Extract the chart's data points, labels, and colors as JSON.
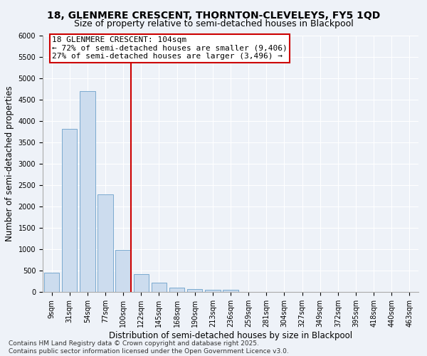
{
  "title1": "18, GLENMERE CRESCENT, THORNTON-CLEVELEYS, FY5 1QD",
  "title2": "Size of property relative to semi-detached houses in Blackpool",
  "xlabel": "Distribution of semi-detached houses by size in Blackpool",
  "ylabel": "Number of semi-detached properties",
  "categories": [
    "9sqm",
    "31sqm",
    "54sqm",
    "77sqm",
    "100sqm",
    "122sqm",
    "145sqm",
    "168sqm",
    "190sqm",
    "213sqm",
    "236sqm",
    "259sqm",
    "281sqm",
    "304sqm",
    "327sqm",
    "349sqm",
    "372sqm",
    "395sqm",
    "418sqm",
    "440sqm",
    "463sqm"
  ],
  "values": [
    450,
    3820,
    4700,
    2280,
    980,
    420,
    220,
    100,
    70,
    50,
    50,
    0,
    0,
    0,
    0,
    0,
    0,
    0,
    0,
    0,
    0
  ],
  "bar_color": "#ccdcee",
  "bar_edge_color": "#7aaacf",
  "vline_index": 4,
  "annotation_title": "18 GLENMERE CRESCENT: 104sqm",
  "annotation_line1": "← 72% of semi-detached houses are smaller (9,406)",
  "annotation_line2": "27% of semi-detached houses are larger (3,496) →",
  "annotation_box_color": "#ffffff",
  "annotation_box_edge": "#cc0000",
  "vline_color": "#cc0000",
  "ylim": [
    0,
    6000
  ],
  "yticks": [
    0,
    500,
    1000,
    1500,
    2000,
    2500,
    3000,
    3500,
    4000,
    4500,
    5000,
    5500,
    6000
  ],
  "footer1": "Contains HM Land Registry data © Crown copyright and database right 2025.",
  "footer2": "Contains public sector information licensed under the Open Government Licence v3.0.",
  "bg_color": "#eef2f8",
  "grid_color": "#ffffff",
  "title_fontsize": 10,
  "subtitle_fontsize": 9,
  "axis_label_fontsize": 8.5,
  "tick_fontsize": 7,
  "annotation_fontsize": 8,
  "footer_fontsize": 6.5
}
